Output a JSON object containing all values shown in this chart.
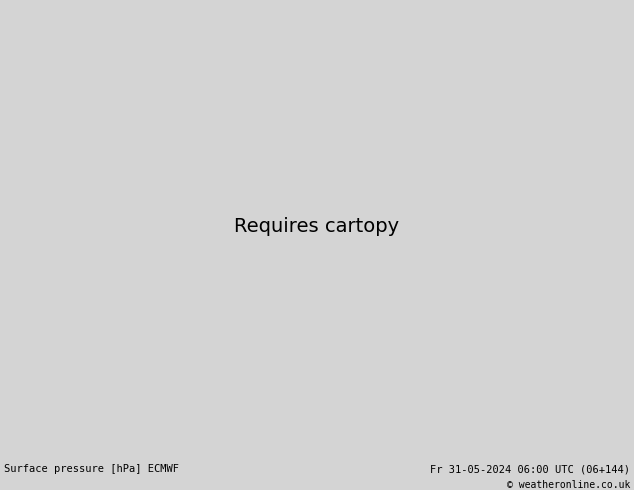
{
  "title": "Surface pressure [hPa] ECMWF",
  "date_str": "Fr 31-05-2024 06:00 UTC (06+144)",
  "copyright": "© weatheronline.co.uk",
  "bg_color": "#d4d4d4",
  "sea_color": "#d4d4d4",
  "land_color": "#c8f0c0",
  "border_color": "#9aaa9a",
  "fig_width": 6.34,
  "fig_height": 4.9,
  "dpi": 100,
  "bottom_bar_color": "#e0e0e0",
  "lon_min": -11.5,
  "lon_max": 7.0,
  "lat_min": 48.5,
  "lat_max": 61.5
}
